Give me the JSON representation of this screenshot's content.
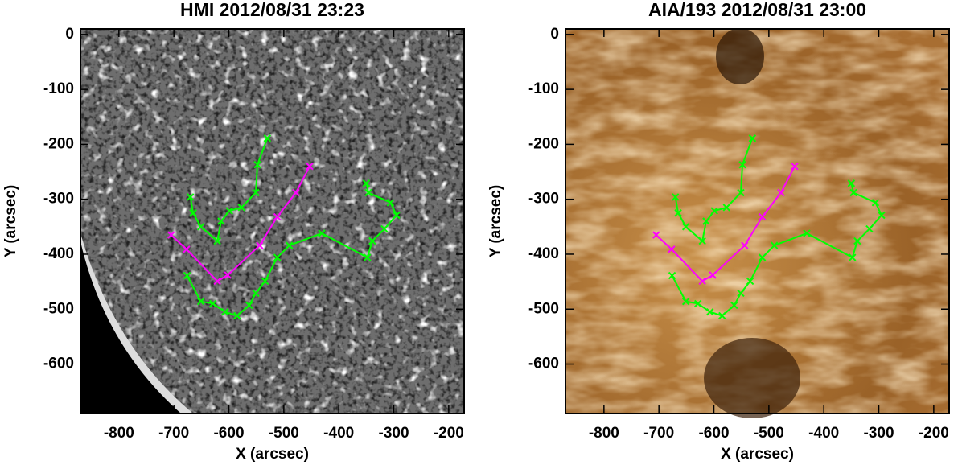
{
  "chart_data": [
    {
      "type": "line",
      "title": "HMI 2012/08/31 23:23",
      "xlabel": "X (arcsec)",
      "ylabel": "Y (arcsec)",
      "xlim": [
        -870,
        -172
      ],
      "ylim": [
        -690,
        10
      ],
      "xticks": [
        -800,
        -700,
        -600,
        -500,
        -400,
        -300,
        -200
      ],
      "yticks": [
        0,
        -100,
        -200,
        -300,
        -400,
        -500,
        -600
      ],
      "series": [
        {
          "color": "#00ff00",
          "x": [
            -530,
            -548,
            -551,
            -577,
            -599,
            -614,
            -621,
            -651,
            -665,
            -670
          ],
          "y": [
            -189,
            -237,
            -288,
            -315,
            -321,
            -340,
            -376,
            -350,
            -325,
            -296
          ]
        },
        {
          "color": "#00ff00",
          "x": [
            -676,
            -651,
            -629,
            -607,
            -585,
            -563,
            -551,
            -534,
            -512,
            -490,
            -431,
            -348,
            -339,
            -317,
            -295,
            -306,
            -346,
            -350
          ],
          "y": [
            -439,
            -486,
            -490,
            -505,
            -512,
            -493,
            -471,
            -449,
            -406,
            -384,
            -362,
            -406,
            -376,
            -354,
            -329,
            -306,
            -288,
            -271
          ]
        },
        {
          "color": "#ff00ff",
          "x": [
            -705,
            -677,
            -621,
            -602,
            -544,
            -512,
            -478,
            -453
          ],
          "y": [
            -365,
            -391,
            -449,
            -438,
            -384,
            -332,
            -288,
            -240
          ]
        }
      ]
    },
    {
      "type": "line",
      "title": "AIA/193 2012/08/31 23:00",
      "xlabel": "X (arcsec)",
      "ylabel": "Y (arcsec)",
      "xlim": [
        -870,
        -172
      ],
      "ylim": [
        -690,
        10
      ],
      "xticks": [
        -800,
        -700,
        -600,
        -500,
        -400,
        -300,
        -200
      ],
      "yticks": [
        0,
        -100,
        -200,
        -300,
        -400,
        -500,
        -600
      ],
      "series": [
        {
          "color": "#00ff00",
          "x": [
            -530,
            -548,
            -551,
            -577,
            -599,
            -614,
            -621,
            -651,
            -665,
            -670
          ],
          "y": [
            -189,
            -237,
            -288,
            -315,
            -321,
            -340,
            -376,
            -350,
            -325,
            -296
          ]
        },
        {
          "color": "#00ff00",
          "x": [
            -676,
            -651,
            -629,
            -607,
            -585,
            -563,
            -551,
            -534,
            -512,
            -490,
            -431,
            -348,
            -339,
            -317,
            -295,
            -306,
            -346,
            -350
          ],
          "y": [
            -439,
            -486,
            -490,
            -505,
            -512,
            -493,
            -471,
            -449,
            -406,
            -384,
            -362,
            -406,
            -376,
            -354,
            -329,
            -306,
            -288,
            -271
          ]
        },
        {
          "color": "#ff00ff",
          "x": [
            -705,
            -677,
            -621,
            -602,
            -544,
            -512,
            -478,
            -453
          ],
          "y": [
            -365,
            -391,
            -449,
            -438,
            -384,
            -332,
            -288,
            -240
          ]
        }
      ]
    }
  ]
}
